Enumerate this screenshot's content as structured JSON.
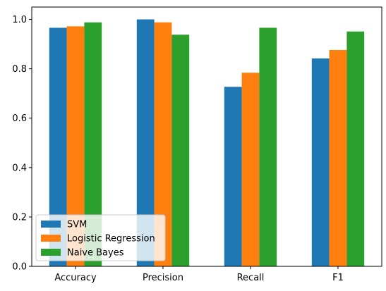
{
  "chart_data": {
    "type": "bar",
    "title": "",
    "xlabel": "",
    "ylabel": "",
    "categories": [
      "Accuracy",
      "Precision",
      "Recall",
      "F1"
    ],
    "series": [
      {
        "name": "SVM",
        "color": "#1f77b4",
        "values": [
          0.966,
          1.0,
          0.727,
          0.842
        ]
      },
      {
        "name": "Logistic Regression",
        "color": "#ff7f0e",
        "values": [
          0.972,
          0.988,
          0.784,
          0.876
        ]
      },
      {
        "name": "Naive Bayes",
        "color": "#2ca02c",
        "values": [
          0.988,
          0.938,
          0.966,
          0.951
        ]
      }
    ],
    "ylim": [
      0,
      1.05
    ],
    "yticks": [
      0.0,
      0.2,
      0.4,
      0.6,
      0.8,
      1.0
    ],
    "ytick_labels": [
      "0.0",
      "0.2",
      "0.4",
      "0.6",
      "0.8",
      "1.0"
    ],
    "grid": false,
    "legend_position": "lower-left"
  }
}
